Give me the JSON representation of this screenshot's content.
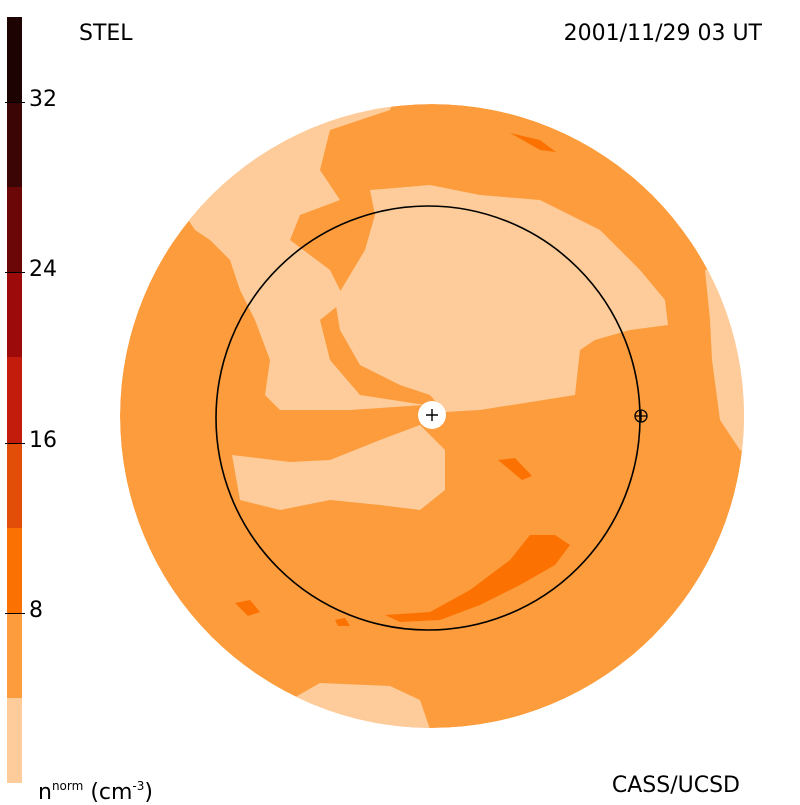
{
  "header": {
    "instrument": "STEL",
    "timestamp": "2001/11/29 03 UT"
  },
  "footer": {
    "quantity": "n",
    "quantity_sup": "norm",
    "unit_prefix": "(cm",
    "unit_sup": "-3",
    "unit_suffix": ")",
    "credit": "CASS/UCSD"
  },
  "colorbar": {
    "ticks": [
      "32",
      "24",
      "16",
      "8"
    ],
    "tick_values": [
      32,
      24,
      16,
      8
    ],
    "range": [
      0,
      36
    ],
    "levels": [
      {
        "from": 0,
        "to": 4,
        "color": "#fdcc9a"
      },
      {
        "from": 4,
        "to": 8,
        "color": "#fc9c3c"
      },
      {
        "from": 8,
        "to": 12,
        "color": "#fc7202"
      },
      {
        "from": 12,
        "to": 16,
        "color": "#e24d08"
      },
      {
        "from": 16,
        "to": 20,
        "color": "#c31b0c"
      },
      {
        "from": 20,
        "to": 24,
        "color": "#9c0a0a"
      },
      {
        "from": 24,
        "to": 28,
        "color": "#6b0707"
      },
      {
        "from": 28,
        "to": 32,
        "color": "#3c0505"
      },
      {
        "from": 32,
        "to": 36,
        "color": "#1e0303"
      }
    ]
  },
  "colors": {
    "light": "#fdcc9a",
    "medium": "#fc9c3c",
    "dark": "#fc7202",
    "darker": "#e24d08"
  },
  "markers": {
    "sun": "plus-icon",
    "earth": "earth-symbol-icon"
  }
}
